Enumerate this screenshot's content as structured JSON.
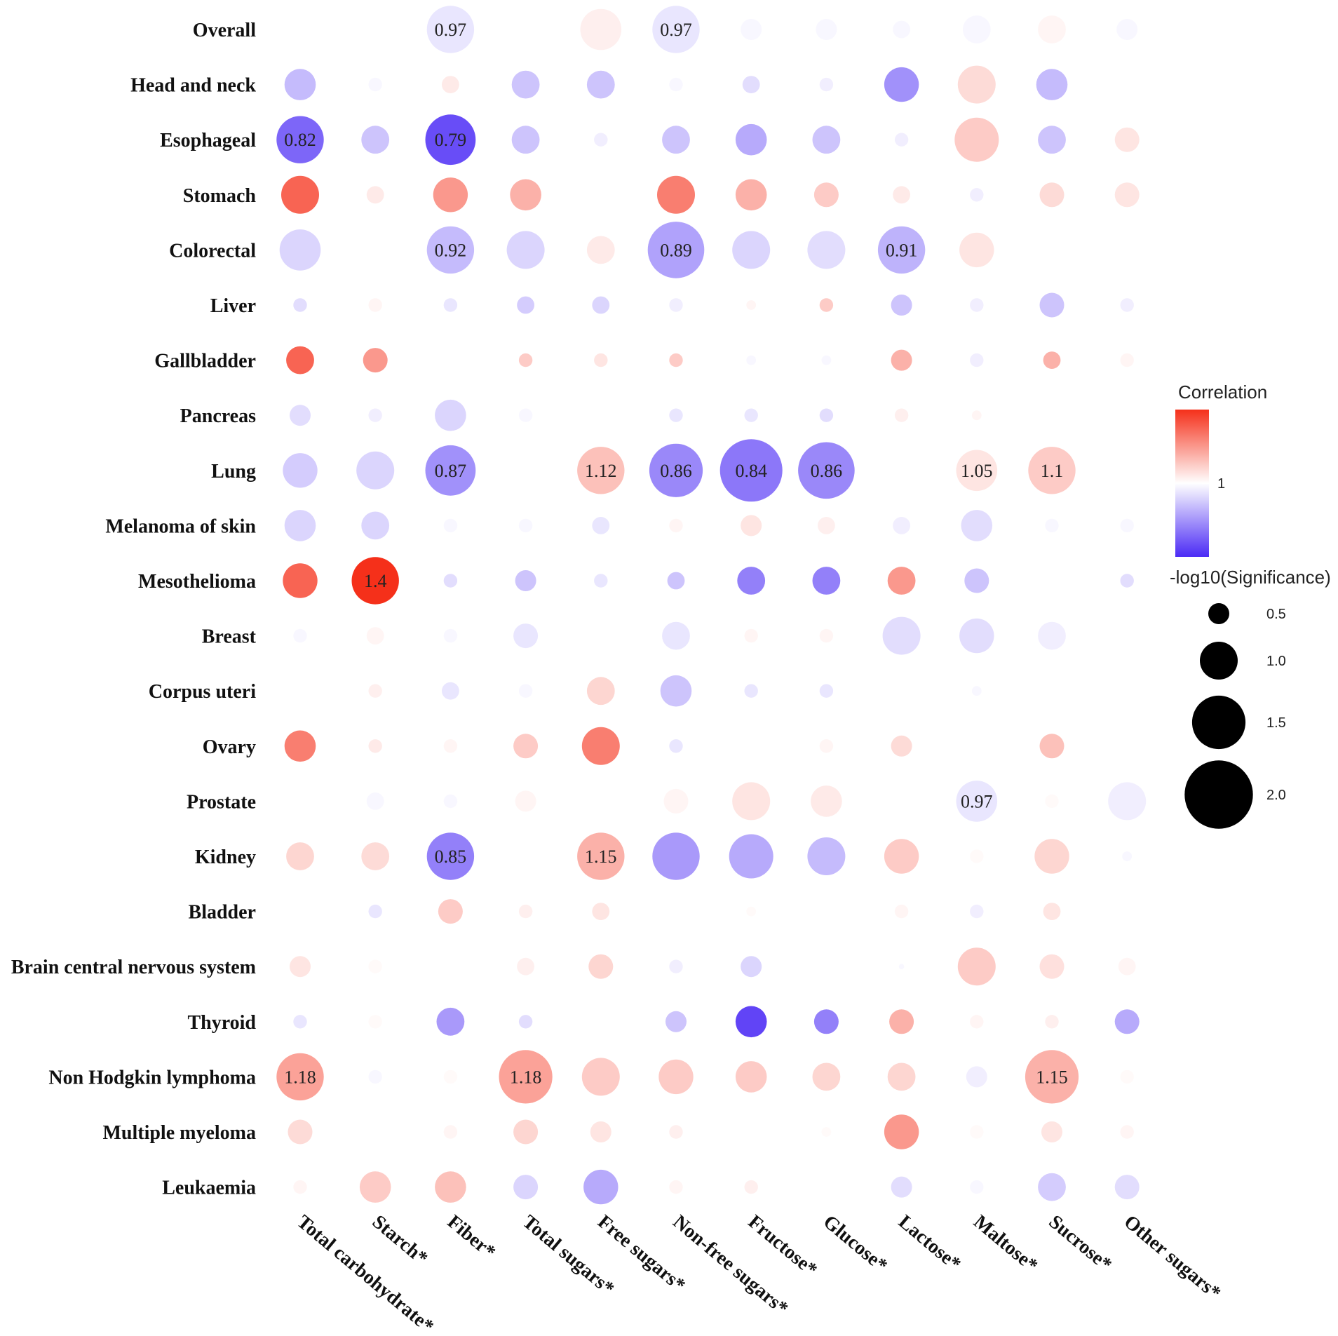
{
  "chart_data": {
    "type": "bubble-heatmap",
    "rows": [
      "Overall",
      "Head and neck",
      "Esophageal",
      "Stomach",
      "Colorectal",
      "Liver",
      "Gallbladder",
      "Pancreas",
      "Lung",
      "Melanoma of skin",
      "Mesothelioma",
      "Breast",
      "Corpus uteri",
      "Ovary",
      "Prostate",
      "Kidney",
      "Bladder",
      "Brain central nervous system",
      "Thyroid",
      "Non Hodgkin lymphoma",
      "Multiple myeloma",
      "Leukaemia"
    ],
    "columns": [
      "Total carbohydrate*",
      "Starch*",
      "Fiber*",
      "Total sugars*",
      "Free sugars*",
      "Non-free sugars*",
      "Fructose*",
      "Glucose*",
      "Lactose*",
      "Maltose*",
      "Sucrose*",
      "Other sugars*"
    ],
    "cells": [
      [
        [
          1.0,
          0.1
        ],
        [
          1.0,
          0.1
        ],
        [
          0.97,
          1.3
        ],
        [
          1.0,
          0.1
        ],
        [
          1.03,
          1.1
        ],
        [
          0.97,
          1.3
        ],
        [
          0.99,
          0.5
        ],
        [
          0.99,
          0.5
        ],
        [
          0.99,
          0.4
        ],
        [
          0.99,
          0.7
        ],
        [
          1.02,
          0.7
        ],
        [
          0.99,
          0.5
        ]
      ],
      [
        [
          0.92,
          0.8
        ],
        [
          0.99,
          0.3
        ],
        [
          1.04,
          0.4
        ],
        [
          0.93,
          0.7
        ],
        [
          0.93,
          0.7
        ],
        [
          0.99,
          0.3
        ],
        [
          0.96,
          0.4
        ],
        [
          0.98,
          0.3
        ],
        [
          0.87,
          0.9
        ],
        [
          1.07,
          1.0
        ],
        [
          0.92,
          0.8
        ],
        [
          1.0,
          0.1
        ]
      ],
      [
        [
          0.82,
          1.3
        ],
        [
          0.93,
          0.7
        ],
        [
          0.79,
          1.4
        ],
        [
          0.93,
          0.7
        ],
        [
          0.98,
          0.3
        ],
        [
          0.93,
          0.7
        ],
        [
          0.9,
          0.8
        ],
        [
          0.93,
          0.7
        ],
        [
          0.98,
          0.3
        ],
        [
          1.1,
          1.2
        ],
        [
          0.93,
          0.7
        ],
        [
          1.05,
          0.6
        ]
      ],
      [
        [
          1.3,
          1.0
        ],
        [
          1.04,
          0.4
        ],
        [
          1.2,
          0.9
        ],
        [
          1.15,
          0.8
        ],
        [
          1.0,
          0.1
        ],
        [
          1.25,
          1.0
        ],
        [
          1.15,
          0.8
        ],
        [
          1.1,
          0.6
        ],
        [
          1.04,
          0.4
        ],
        [
          0.98,
          0.3
        ],
        [
          1.07,
          0.6
        ],
        [
          1.05,
          0.6
        ]
      ],
      [
        [
          0.95,
          1.1
        ],
        [
          1.0,
          0.2
        ],
        [
          0.92,
          1.3
        ],
        [
          0.95,
          1.0
        ],
        [
          1.04,
          0.7
        ],
        [
          0.89,
          1.6
        ],
        [
          0.95,
          1.0
        ],
        [
          0.96,
          1.0
        ],
        [
          0.91,
          1.3
        ],
        [
          1.05,
          0.9
        ],
        [
          1.0,
          0.2
        ],
        [
          1.0,
          0.2
        ]
      ],
      [
        [
          0.96,
          0.3
        ],
        [
          1.02,
          0.3
        ],
        [
          0.97,
          0.3
        ],
        [
          0.94,
          0.4
        ],
        [
          0.95,
          0.4
        ],
        [
          0.98,
          0.3
        ],
        [
          1.02,
          0.2
        ],
        [
          1.1,
          0.3
        ],
        [
          0.93,
          0.5
        ],
        [
          0.98,
          0.3
        ],
        [
          0.93,
          0.6
        ],
        [
          0.98,
          0.3
        ]
      ],
      [
        [
          1.3,
          0.7
        ],
        [
          1.2,
          0.6
        ],
        [
          1.0,
          0.1
        ],
        [
          1.1,
          0.3
        ],
        [
          1.05,
          0.3
        ],
        [
          1.1,
          0.3
        ],
        [
          0.99,
          0.2
        ],
        [
          0.99,
          0.2
        ],
        [
          1.15,
          0.5
        ],
        [
          0.98,
          0.3
        ],
        [
          1.15,
          0.4
        ],
        [
          1.02,
          0.3
        ]
      ],
      [
        [
          0.96,
          0.5
        ],
        [
          0.98,
          0.3
        ],
        [
          0.95,
          0.8
        ],
        [
          0.99,
          0.3
        ],
        [
          1.0,
          0.2
        ],
        [
          0.97,
          0.3
        ],
        [
          0.97,
          0.3
        ],
        [
          0.96,
          0.3
        ],
        [
          1.03,
          0.3
        ],
        [
          1.02,
          0.2
        ],
        [
          1.0,
          0.1
        ],
        [
          1.0,
          0.1
        ]
      ],
      [
        [
          0.94,
          0.9
        ],
        [
          0.95,
          1.0
        ],
        [
          0.87,
          1.4
        ],
        [
          1.0,
          0.1
        ],
        [
          1.12,
          1.3
        ],
        [
          0.86,
          1.5
        ],
        [
          0.84,
          1.8
        ],
        [
          0.86,
          1.6
        ],
        [
          1.0,
          0.2
        ],
        [
          1.05,
          1.1
        ],
        [
          1.1,
          1.3
        ],
        [
          1.0,
          0.1
        ]
      ],
      [
        [
          0.95,
          0.8
        ],
        [
          0.95,
          0.7
        ],
        [
          0.99,
          0.3
        ],
        [
          0.99,
          0.3
        ],
        [
          0.97,
          0.4
        ],
        [
          1.02,
          0.3
        ],
        [
          1.05,
          0.5
        ],
        [
          1.03,
          0.4
        ],
        [
          0.98,
          0.4
        ],
        [
          0.96,
          0.8
        ],
        [
          0.99,
          0.3
        ],
        [
          0.99,
          0.3
        ]
      ],
      [
        [
          1.3,
          0.9
        ],
        [
          1.4,
          1.3
        ],
        [
          0.96,
          0.3
        ],
        [
          0.93,
          0.5
        ],
        [
          0.97,
          0.3
        ],
        [
          0.93,
          0.4
        ],
        [
          0.85,
          0.7
        ],
        [
          0.85,
          0.7
        ],
        [
          1.2,
          0.7
        ],
        [
          0.93,
          0.6
        ],
        [
          1.0,
          0.1
        ],
        [
          0.96,
          0.3
        ]
      ],
      [
        [
          0.99,
          0.3
        ],
        [
          1.02,
          0.4
        ],
        [
          0.99,
          0.3
        ],
        [
          0.97,
          0.6
        ],
        [
          1.0,
          0.1
        ],
        [
          0.97,
          0.7
        ],
        [
          1.02,
          0.3
        ],
        [
          1.02,
          0.3
        ],
        [
          0.96,
          1.0
        ],
        [
          0.96,
          0.9
        ],
        [
          0.98,
          0.7
        ],
        [
          1.0,
          0.1
        ]
      ],
      [
        [
          1.0,
          0.1
        ],
        [
          1.03,
          0.3
        ],
        [
          0.97,
          0.4
        ],
        [
          0.99,
          0.3
        ],
        [
          1.08,
          0.7
        ],
        [
          0.93,
          0.8
        ],
        [
          0.97,
          0.3
        ],
        [
          0.97,
          0.3
        ],
        [
          1.0,
          0.1
        ],
        [
          0.99,
          0.2
        ],
        [
          1.0,
          0.1
        ],
        [
          1.0,
          0.2
        ]
      ],
      [
        [
          1.25,
          0.8
        ],
        [
          1.04,
          0.3
        ],
        [
          1.02,
          0.3
        ],
        [
          1.1,
          0.6
        ],
        [
          1.25,
          1.0
        ],
        [
          0.97,
          0.3
        ],
        [
          1.0,
          0.1
        ],
        [
          1.02,
          0.3
        ],
        [
          1.07,
          0.5
        ],
        [
          1.0,
          0.1
        ],
        [
          1.12,
          0.6
        ],
        [
          1.0,
          0.1
        ]
      ],
      [
        [
          1.0,
          0.1
        ],
        [
          0.99,
          0.4
        ],
        [
          0.99,
          0.3
        ],
        [
          1.02,
          0.5
        ],
        [
          1.0,
          0.1
        ],
        [
          1.02,
          0.6
        ],
        [
          1.05,
          1.0
        ],
        [
          1.04,
          0.8
        ],
        [
          1.0,
          0.1
        ],
        [
          0.97,
          1.1
        ],
        [
          1.01,
          0.3
        ],
        [
          0.98,
          1.0
        ]
      ],
      [
        [
          1.08,
          0.7
        ],
        [
          1.07,
          0.7
        ],
        [
          0.85,
          1.3
        ],
        [
          1.0,
          0.2
        ],
        [
          1.15,
          1.3
        ],
        [
          0.88,
          1.3
        ],
        [
          0.9,
          1.2
        ],
        [
          0.92,
          1.0
        ],
        [
          1.1,
          0.9
        ],
        [
          1.01,
          0.3
        ],
        [
          1.08,
          0.9
        ],
        [
          0.99,
          0.2
        ]
      ],
      [
        [
          1.0,
          0.1
        ],
        [
          0.97,
          0.3
        ],
        [
          1.1,
          0.6
        ],
        [
          1.03,
          0.3
        ],
        [
          1.05,
          0.4
        ],
        [
          1.0,
          0.1
        ],
        [
          1.01,
          0.2
        ],
        [
          1.0,
          0.1
        ],
        [
          1.02,
          0.3
        ],
        [
          0.98,
          0.3
        ],
        [
          1.05,
          0.4
        ],
        [
          1.0,
          0.1
        ]
      ],
      [
        [
          1.05,
          0.5
        ],
        [
          1.01,
          0.3
        ],
        [
          1.0,
          0.1
        ],
        [
          1.03,
          0.4
        ],
        [
          1.08,
          0.6
        ],
        [
          0.98,
          0.3
        ],
        [
          0.95,
          0.5
        ],
        [
          1.0,
          0.1
        ],
        [
          0.99,
          0.1
        ],
        [
          1.1,
          1.0
        ],
        [
          1.06,
          0.6
        ],
        [
          1.02,
          0.4
        ]
      ],
      [
        [
          0.97,
          0.3
        ],
        [
          1.01,
          0.3
        ],
        [
          0.88,
          0.7
        ],
        [
          0.96,
          0.3
        ],
        [
          1.0,
          0.2
        ],
        [
          0.93,
          0.5
        ],
        [
          0.78,
          0.8
        ],
        [
          0.85,
          0.6
        ],
        [
          1.15,
          0.6
        ],
        [
          1.02,
          0.3
        ],
        [
          1.03,
          0.3
        ],
        [
          0.9,
          0.6
        ]
      ],
      [
        [
          1.18,
          1.3
        ],
        [
          0.99,
          0.3
        ],
        [
          1.01,
          0.3
        ],
        [
          1.18,
          1.5
        ],
        [
          1.1,
          1.0
        ],
        [
          1.1,
          0.9
        ],
        [
          1.1,
          0.8
        ],
        [
          1.08,
          0.7
        ],
        [
          1.08,
          0.7
        ],
        [
          0.98,
          0.5
        ],
        [
          1.15,
          1.5
        ],
        [
          1.01,
          0.3
        ]
      ],
      [
        [
          1.07,
          0.6
        ],
        [
          1.0,
          0.1
        ],
        [
          1.02,
          0.3
        ],
        [
          1.08,
          0.6
        ],
        [
          1.05,
          0.5
        ],
        [
          1.03,
          0.3
        ],
        [
          1.0,
          0.1
        ],
        [
          1.01,
          0.2
        ],
        [
          1.2,
          0.9
        ],
        [
          1.01,
          0.3
        ],
        [
          1.05,
          0.5
        ],
        [
          1.02,
          0.3
        ]
      ],
      [
        [
          1.02,
          0.3
        ],
        [
          1.1,
          0.8
        ],
        [
          1.12,
          0.8
        ],
        [
          0.95,
          0.6
        ],
        [
          0.9,
          0.9
        ],
        [
          1.02,
          0.3
        ],
        [
          1.03,
          0.3
        ],
        [
          1.0,
          0.1
        ],
        [
          0.96,
          0.5
        ],
        [
          0.99,
          0.3
        ],
        [
          0.94,
          0.7
        ],
        [
          0.96,
          0.6
        ]
      ]
    ],
    "labels": [
      {
        "row": 0,
        "col": 2,
        "text": "0.97"
      },
      {
        "row": 0,
        "col": 5,
        "text": "0.97"
      },
      {
        "row": 2,
        "col": 0,
        "text": "0.82"
      },
      {
        "row": 2,
        "col": 2,
        "text": "0.79"
      },
      {
        "row": 4,
        "col": 2,
        "text": "0.92"
      },
      {
        "row": 4,
        "col": 5,
        "text": "0.89"
      },
      {
        "row": 4,
        "col": 8,
        "text": "0.91"
      },
      {
        "row": 8,
        "col": 2,
        "text": "0.87"
      },
      {
        "row": 8,
        "col": 4,
        "text": "1.12"
      },
      {
        "row": 8,
        "col": 5,
        "text": "0.86"
      },
      {
        "row": 8,
        "col": 6,
        "text": "0.84"
      },
      {
        "row": 8,
        "col": 7,
        "text": "0.86"
      },
      {
        "row": 8,
        "col": 9,
        "text": "1.05"
      },
      {
        "row": 8,
        "col": 10,
        "text": "1.1"
      },
      {
        "row": 10,
        "col": 1,
        "text": "1.4"
      },
      {
        "row": 14,
        "col": 9,
        "text": "0.97"
      },
      {
        "row": 15,
        "col": 2,
        "text": "0.85"
      },
      {
        "row": 15,
        "col": 4,
        "text": "1.15"
      },
      {
        "row": 19,
        "col": 0,
        "text": "1.18"
      },
      {
        "row": 19,
        "col": 3,
        "text": "1.18"
      },
      {
        "row": 19,
        "col": 10,
        "text": "1.15"
      }
    ],
    "legend": {
      "color_title": "Correlation",
      "color_mid_label": "1",
      "size_title": "-log10(Significance)",
      "size_values": [
        0.5,
        1.0,
        1.5,
        2.0
      ],
      "size_labels": [
        "0.5",
        "1.0",
        "1.5",
        "2.0"
      ]
    },
    "colors": {
      "low": "#4b2bf5",
      "mid": "#ffffff",
      "high": "#f5301a"
    }
  }
}
